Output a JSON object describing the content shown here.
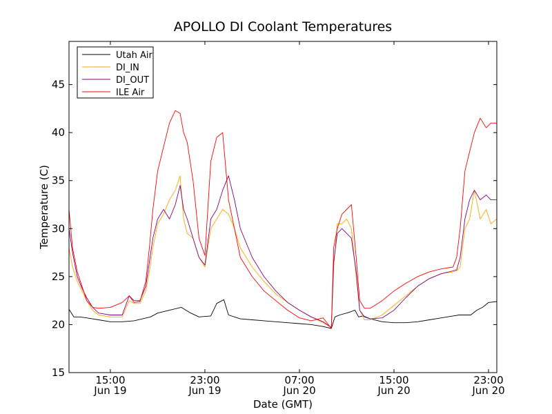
{
  "chart_data": {
    "type": "line",
    "title": "APOLLO DI Coolant Temperatures",
    "xlabel": "Date (GMT)",
    "ylabel": "Temperature (C)",
    "ylim": [
      15,
      49.5
    ],
    "xlim_hours": [
      11.5,
      47.7
    ],
    "grid": false,
    "legend_position": "top-left",
    "yticks": [
      {
        "value": 15,
        "label": "15"
      },
      {
        "value": 20,
        "label": "20"
      },
      {
        "value": 25,
        "label": "25"
      },
      {
        "value": 30,
        "label": "30"
      },
      {
        "value": 35,
        "label": "35"
      },
      {
        "value": 40,
        "label": "40"
      },
      {
        "value": 45,
        "label": "45"
      }
    ],
    "xticks": [
      {
        "hour": 15,
        "time": "15:00",
        "date": "Jun 19"
      },
      {
        "hour": 23,
        "time": "23:00",
        "date": "Jun 19"
      },
      {
        "hour": 31,
        "time": "07:00",
        "date": "Jun 20"
      },
      {
        "hour": 39,
        "time": "15:00",
        "date": "Jun 20"
      },
      {
        "hour": 47,
        "time": "23:00",
        "date": "Jun 20"
      }
    ],
    "x_units": "hours since Jun 19 00:00 GMT",
    "series": [
      {
        "name": "Utah Air",
        "color": "#000000",
        "x": [
          11.5,
          11.9,
          12.4,
          13,
          14,
          15,
          16,
          17,
          18.4,
          19,
          20,
          21,
          21.8,
          22.5,
          23.5,
          24,
          24.6,
          25,
          25.5,
          26,
          27,
          28,
          29,
          30,
          31,
          32,
          33,
          33.7,
          34,
          34.4,
          35,
          35.7,
          36,
          36.4,
          37,
          38,
          39,
          40,
          41,
          42,
          43,
          44,
          44.5,
          45,
          45.5,
          46,
          46.5,
          47,
          47.7
        ],
        "values": [
          21.6,
          20.8,
          20.8,
          20.7,
          20.5,
          20.3,
          20.3,
          20.4,
          20.8,
          21.2,
          21.5,
          21.8,
          21.2,
          20.8,
          20.9,
          22.2,
          22.6,
          21.0,
          20.8,
          20.6,
          20.5,
          20.4,
          20.3,
          20.2,
          20.1,
          20.0,
          19.8,
          19.6,
          20.8,
          21.0,
          21.2,
          21.5,
          20.8,
          20.9,
          20.6,
          20.3,
          20.2,
          20.2,
          20.3,
          20.5,
          20.7,
          20.9,
          21.0,
          21.0,
          21.0,
          21.5,
          21.8,
          22.3,
          22.4
        ]
      },
      {
        "name": "DI_IN",
        "color": "#ffa500",
        "x": [
          11.5,
          11.8,
          12.2,
          12.6,
          13,
          13.5,
          14,
          15,
          16,
          16.6,
          17,
          17.5,
          18,
          18.3,
          18.6,
          19,
          19.5,
          20,
          20.5,
          20.9,
          21.2,
          21.5,
          22,
          22.5,
          23,
          23.5,
          24,
          24.5,
          25,
          25.5,
          26,
          27,
          28,
          29,
          30,
          31,
          32,
          33,
          33.7,
          33.9,
          34.2,
          34.6,
          35,
          35.4,
          35.8,
          36.1,
          36.5,
          37,
          38,
          39,
          40,
          41,
          42,
          43,
          44,
          44.3,
          44.6,
          45,
          45.4,
          45.8,
          46.3,
          46.8,
          47.2,
          47.7
        ],
        "values": [
          28.0,
          26.0,
          24.5,
          23.5,
          22.5,
          21.5,
          21.0,
          20.8,
          20.8,
          22.5,
          22.2,
          22.2,
          23.5,
          25.5,
          28.0,
          30.5,
          31.5,
          33.0,
          34.0,
          35.5,
          31.0,
          29.5,
          29.0,
          27.0,
          26.0,
          30.0,
          31.0,
          32.0,
          31.5,
          30.0,
          28.0,
          26.0,
          24.5,
          23.2,
          22.3,
          21.5,
          20.8,
          20.2,
          19.7,
          26.0,
          30.5,
          30.5,
          31.0,
          30.0,
          25.0,
          21.5,
          20.5,
          20.5,
          21.0,
          22.0,
          23.0,
          24.0,
          24.8,
          25.3,
          25.5,
          25.6,
          26.0,
          30.0,
          31.0,
          34.0,
          31.0,
          32.0,
          30.5,
          31.0
        ]
      },
      {
        "name": "DI_OUT",
        "color": "#800080",
        "x": [
          11.5,
          11.8,
          12.2,
          12.6,
          13,
          13.5,
          14,
          15,
          16,
          16.6,
          17,
          17.5,
          18,
          18.3,
          18.6,
          19,
          19.5,
          20,
          20.5,
          20.9,
          21.2,
          21.5,
          22,
          22.5,
          23,
          23.5,
          24,
          24.5,
          25,
          25.5,
          26,
          27,
          28,
          29,
          30,
          31,
          32,
          33,
          33.7,
          33.9,
          34.2,
          34.6,
          35,
          35.4,
          35.8,
          36.1,
          36.5,
          37,
          38,
          39,
          40,
          41,
          42,
          43,
          44,
          44.3,
          44.6,
          45,
          45.4,
          45.8,
          46.3,
          46.8,
          47.2,
          47.7
        ],
        "values": [
          30.0,
          27.5,
          25.0,
          23.8,
          22.8,
          21.8,
          21.2,
          21.0,
          21.0,
          23.0,
          22.5,
          22.5,
          24.0,
          26.5,
          29.0,
          31.0,
          32.0,
          31.0,
          32.5,
          34.5,
          32.0,
          31.0,
          29.0,
          27.0,
          26.2,
          31.0,
          32.0,
          34.0,
          35.5,
          33.0,
          30.0,
          27.0,
          25.0,
          23.5,
          22.3,
          21.5,
          20.8,
          20.3,
          19.7,
          26.5,
          29.5,
          30.0,
          29.5,
          29.0,
          25.5,
          21.5,
          20.8,
          20.6,
          20.7,
          21.5,
          22.8,
          24.0,
          24.8,
          25.3,
          25.6,
          25.7,
          27.0,
          31.0,
          33.0,
          34.0,
          33.0,
          33.5,
          33.0,
          33.0
        ]
      },
      {
        "name": "ILE Air",
        "color": "#ff0000",
        "x": [
          11.5,
          11.8,
          12.2,
          12.6,
          13,
          13.5,
          14,
          15,
          16,
          16.6,
          17,
          17.5,
          18,
          18.3,
          18.6,
          19,
          19.5,
          20,
          20.5,
          20.9,
          21.2,
          21.5,
          22,
          22.5,
          23,
          23.5,
          24,
          24.5,
          25,
          25.5,
          26,
          27,
          28,
          29,
          30,
          31,
          32,
          33,
          33.7,
          33.9,
          34.2,
          34.6,
          35,
          35.4,
          35.8,
          36.1,
          36.5,
          37,
          38,
          39,
          40,
          41,
          42,
          43,
          44,
          44.3,
          44.6,
          45,
          45.4,
          45.8,
          46.3,
          46.8,
          47.2,
          47.7
        ],
        "values": [
          32.0,
          28.0,
          25.5,
          24.0,
          22.5,
          21.8,
          21.7,
          21.8,
          22.3,
          23.0,
          22.3,
          22.4,
          24.5,
          28.0,
          32.0,
          36.0,
          38.5,
          41.0,
          42.3,
          42.0,
          40.0,
          39.0,
          35.0,
          29.0,
          27.2,
          37.0,
          39.5,
          40.0,
          33.0,
          30.0,
          27.0,
          25.0,
          23.5,
          22.5,
          21.5,
          20.7,
          20.4,
          20.7,
          19.6,
          28.0,
          30.0,
          31.5,
          32.0,
          32.5,
          27.0,
          22.5,
          21.7,
          21.7,
          22.5,
          23.5,
          24.3,
          25.0,
          25.5,
          25.8,
          26.0,
          27.0,
          30.0,
          36.0,
          38.0,
          40.0,
          41.5,
          40.5,
          41.0,
          41.0
        ]
      }
    ]
  }
}
